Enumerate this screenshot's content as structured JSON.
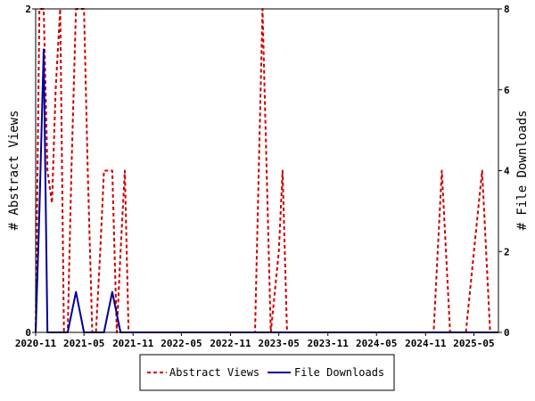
{
  "chart_data": {
    "type": "line",
    "x_tick_labels": [
      "2020-11",
      "2021-05",
      "2021-11",
      "2022-05",
      "2022-11",
      "2023-05",
      "2023-11",
      "2024-05",
      "2024-11",
      "2025-05"
    ],
    "x_range": [
      "2020-11",
      "2025-08"
    ],
    "y_left": {
      "label": "# Abstract Views",
      "ticks": [
        "0",
        "2"
      ],
      "range": [
        0,
        2
      ]
    },
    "y_right": {
      "label": "# File Downloads",
      "ticks": [
        "0",
        "2",
        "4",
        "6",
        "8"
      ],
      "range": [
        0,
        8
      ]
    },
    "legend_position": "bottom-center",
    "grid": false,
    "series": [
      {
        "name": "Abstract Views",
        "axis": "left",
        "color": "#cc0000",
        "style": "dashed",
        "points": [
          [
            "2020-11-01",
            0
          ],
          [
            "2020-11-15",
            2
          ],
          [
            "2020-12-01",
            2
          ],
          [
            "2020-12-15",
            1
          ],
          [
            "2021-01-01",
            0.8
          ],
          [
            "2021-01-15",
            1.5
          ],
          [
            "2021-02-01",
            2
          ],
          [
            "2021-02-15",
            0
          ],
          [
            "2021-03-01",
            0
          ],
          [
            "2021-03-15",
            1
          ],
          [
            "2021-04-01",
            2
          ],
          [
            "2021-04-15",
            2
          ],
          [
            "2021-05-01",
            2
          ],
          [
            "2021-05-15",
            1
          ],
          [
            "2021-06-01",
            0
          ],
          [
            "2021-06-15",
            0
          ],
          [
            "2021-07-01",
            0.5
          ],
          [
            "2021-07-15",
            1
          ],
          [
            "2021-08-01",
            1
          ],
          [
            "2021-08-15",
            1
          ],
          [
            "2021-09-01",
            0
          ],
          [
            "2021-09-15",
            0.5
          ],
          [
            "2021-10-01",
            1
          ],
          [
            "2021-10-15",
            0
          ],
          [
            "2021-11-01",
            0
          ],
          [
            "2023-02-01",
            0
          ],
          [
            "2023-03-01",
            2
          ],
          [
            "2023-04-01",
            0
          ],
          [
            "2023-05-01",
            0.5
          ],
          [
            "2023-05-15",
            1
          ],
          [
            "2023-06-01",
            0
          ],
          [
            "2024-12-01",
            0
          ],
          [
            "2025-01-01",
            1
          ],
          [
            "2025-02-01",
            0
          ],
          [
            "2025-04-01",
            0
          ],
          [
            "2025-05-01",
            0.5
          ],
          [
            "2025-06-01",
            1
          ],
          [
            "2025-07-01",
            0
          ]
        ]
      },
      {
        "name": "File Downloads",
        "axis": "right",
        "color": "#000099",
        "style": "solid",
        "points": [
          [
            "2020-11-01",
            0
          ],
          [
            "2020-11-15",
            3
          ],
          [
            "2020-12-01",
            7
          ],
          [
            "2020-12-15",
            0
          ],
          [
            "2021-02-01",
            0
          ],
          [
            "2021-03-01",
            0
          ],
          [
            "2021-04-01",
            1
          ],
          [
            "2021-05-01",
            0
          ],
          [
            "2021-07-15",
            0
          ],
          [
            "2021-08-15",
            1
          ],
          [
            "2021-09-15",
            0
          ],
          [
            "2025-08-01",
            0
          ]
        ]
      }
    ]
  }
}
